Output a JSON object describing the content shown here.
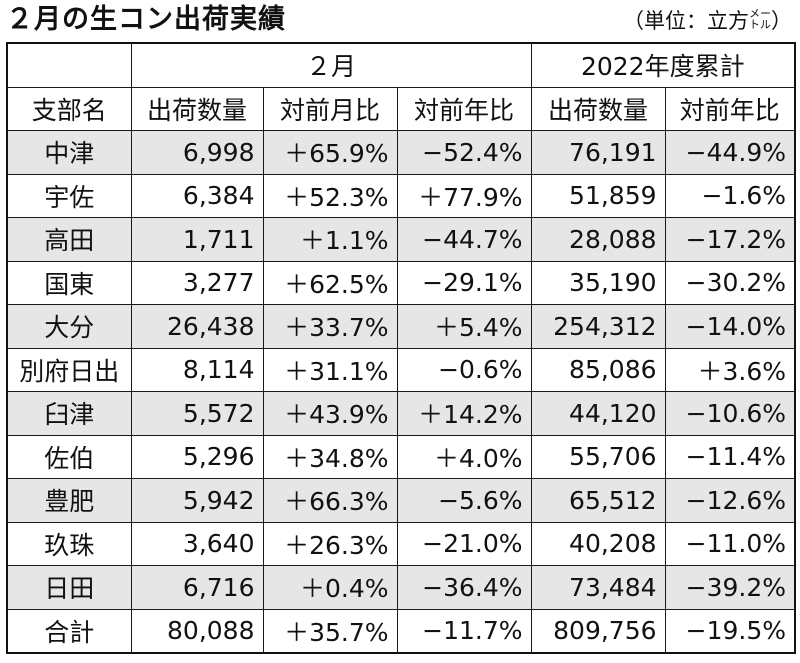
{
  "title": "２月の生コン出荷実績",
  "unit": {
    "prefix": "（単位：立方",
    "small": "メートル",
    "suffix": "）"
  },
  "header": {
    "group_month": "２月",
    "group_year": "2022年度累計",
    "columns": [
      "支部名",
      "出荷数量",
      "対前月比",
      "対前年比",
      "出荷数量",
      "対前年比"
    ]
  },
  "rows": [
    {
      "name": "中津",
      "m_qty": "6,998",
      "m_mom": "＋65.9%",
      "m_yoy": "−52.4%",
      "y_qty": "76,191",
      "y_yoy": "−44.9%"
    },
    {
      "name": "宇佐",
      "m_qty": "6,384",
      "m_mom": "＋52.3%",
      "m_yoy": "＋77.9%",
      "y_qty": "51,859",
      "y_yoy": "−1.6%"
    },
    {
      "name": "高田",
      "m_qty": "1,711",
      "m_mom": "＋1.1%",
      "m_yoy": "−44.7%",
      "y_qty": "28,088",
      "y_yoy": "−17.2%"
    },
    {
      "name": "国東",
      "m_qty": "3,277",
      "m_mom": "＋62.5%",
      "m_yoy": "−29.1%",
      "y_qty": "35,190",
      "y_yoy": "−30.2%"
    },
    {
      "name": "大分",
      "m_qty": "26,438",
      "m_mom": "＋33.7%",
      "m_yoy": "＋5.4%",
      "y_qty": "254,312",
      "y_yoy": "−14.0%"
    },
    {
      "name": "別府日出",
      "m_qty": "8,114",
      "m_mom": "＋31.1%",
      "m_yoy": "−0.6%",
      "y_qty": "85,086",
      "y_yoy": "＋3.6%"
    },
    {
      "name": "臼津",
      "m_qty": "5,572",
      "m_mom": "＋43.9%",
      "m_yoy": "＋14.2%",
      "y_qty": "44,120",
      "y_yoy": "−10.6%"
    },
    {
      "name": "佐伯",
      "m_qty": "5,296",
      "m_mom": "＋34.8%",
      "m_yoy": "＋4.0%",
      "y_qty": "55,706",
      "y_yoy": "−11.4%"
    },
    {
      "name": "豊肥",
      "m_qty": "5,942",
      "m_mom": "＋66.3%",
      "m_yoy": "−5.6%",
      "y_qty": "65,512",
      "y_yoy": "−12.6%"
    },
    {
      "name": "玖珠",
      "m_qty": "3,640",
      "m_mom": "＋26.3%",
      "m_yoy": "−21.0%",
      "y_qty": "40,208",
      "y_yoy": "−11.0%"
    },
    {
      "name": "日田",
      "m_qty": "6,716",
      "m_mom": "＋0.4%",
      "m_yoy": "−36.4%",
      "y_qty": "73,484",
      "y_yoy": "−39.2%"
    }
  ],
  "total": {
    "name": "合計",
    "m_qty": "80,088",
    "m_mom": "＋35.7%",
    "m_yoy": "−11.7%",
    "y_qty": "809,756",
    "y_yoy": "−19.5%"
  },
  "colors": {
    "shade": "#e6e6e6",
    "border": "#1a1a1a",
    "text": "#111111"
  }
}
